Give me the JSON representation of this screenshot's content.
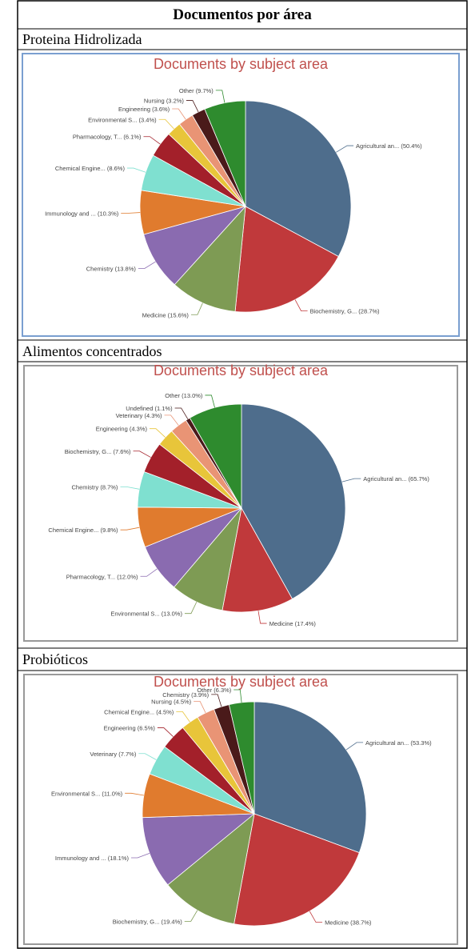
{
  "table": {
    "title": "Documentos por área",
    "sections": [
      {
        "label": "Proteina Hidrolizada",
        "chart_data": {
          "type": "pie",
          "title": "Documents by subject area",
          "categories": [
            "Agricultural an...",
            "Biochemistry, G...",
            "Medicine",
            "Chemistry",
            "Immunology and ...",
            "Chemical Engine...",
            "Pharmacology, T...",
            "Environmental S...",
            "Engineering",
            "Nursing",
            "Other"
          ],
          "values": [
            50.4,
            28.7,
            15.6,
            13.8,
            10.3,
            8.6,
            6.1,
            3.4,
            3.6,
            3.2,
            9.7
          ],
          "value_labels": [
            "(50.4%)",
            "(28.7%)",
            "(15.6%)",
            "(13.8%)",
            "(10.3%)",
            "(8.6%)",
            "(6.1%)",
            "(3.4%)",
            "(3.6%)",
            "(3.2%)",
            "(9.7%)"
          ],
          "colors": [
            "#4e6d8c",
            "#c0393b",
            "#7e9b54",
            "#8a6bb0",
            "#e07b2e",
            "#7fe0d0",
            "#a3202a",
            "#e8c53a",
            "#e99475",
            "#4a1a1a",
            "#2e8b2e"
          ]
        }
      },
      {
        "label": "Alimentos concentrados",
        "chart_data": {
          "type": "pie",
          "title": "Documents by subject area",
          "categories": [
            "Agricultural an...",
            "Medicine",
            "Environmental S...",
            "Pharmacology, T...",
            "Chemical Engine...",
            "Chemistry",
            "Biochemistry, G...",
            "Engineering",
            "Veterinary",
            "Undefined",
            "Other"
          ],
          "values": [
            65.7,
            17.4,
            13.0,
            12.0,
            9.8,
            8.7,
            7.6,
            4.3,
            4.3,
            1.1,
            13.0
          ],
          "value_labels": [
            "(65.7%)",
            "(17.4%)",
            "(13.0%)",
            "(12.0%)",
            "(9.8%)",
            "(8.7%)",
            "(7.6%)",
            "(4.3%)",
            "(4.3%)",
            "(1.1%)",
            "(13.0%)"
          ],
          "colors": [
            "#4e6d8c",
            "#c0393b",
            "#7e9b54",
            "#8a6bb0",
            "#e07b2e",
            "#7fe0d0",
            "#a3202a",
            "#e8c53a",
            "#e99475",
            "#4a1a1a",
            "#2e8b2e"
          ]
        }
      },
      {
        "label": "Probióticos",
        "chart_data": {
          "type": "pie",
          "title": "Documents by subject area",
          "categories": [
            "Agricultural an...",
            "Medicine",
            "Biochemistry, G...",
            "Immunology and ...",
            "Environmental S...",
            "Veterinary",
            "Engineering",
            "Chemical Engine...",
            "Nursing",
            "Chemistry",
            "Other"
          ],
          "values": [
            53.3,
            38.7,
            19.4,
            18.1,
            11.0,
            7.7,
            6.5,
            4.5,
            4.5,
            3.9,
            6.3
          ],
          "value_labels": [
            "(53.3%)",
            "(38.7%)",
            "(19.4%)",
            "(18.1%)",
            "(11.0%)",
            "(7.7%)",
            "(6.5%)",
            "(4.5%)",
            "(4.5%)",
            "(3.9%)",
            "(6.3%)"
          ],
          "colors": [
            "#4e6d8c",
            "#c0393b",
            "#7e9b54",
            "#8a6bb0",
            "#e07b2e",
            "#7fe0d0",
            "#a3202a",
            "#e8c53a",
            "#e99475",
            "#4a1a1a",
            "#2e8b2e"
          ]
        }
      }
    ]
  }
}
